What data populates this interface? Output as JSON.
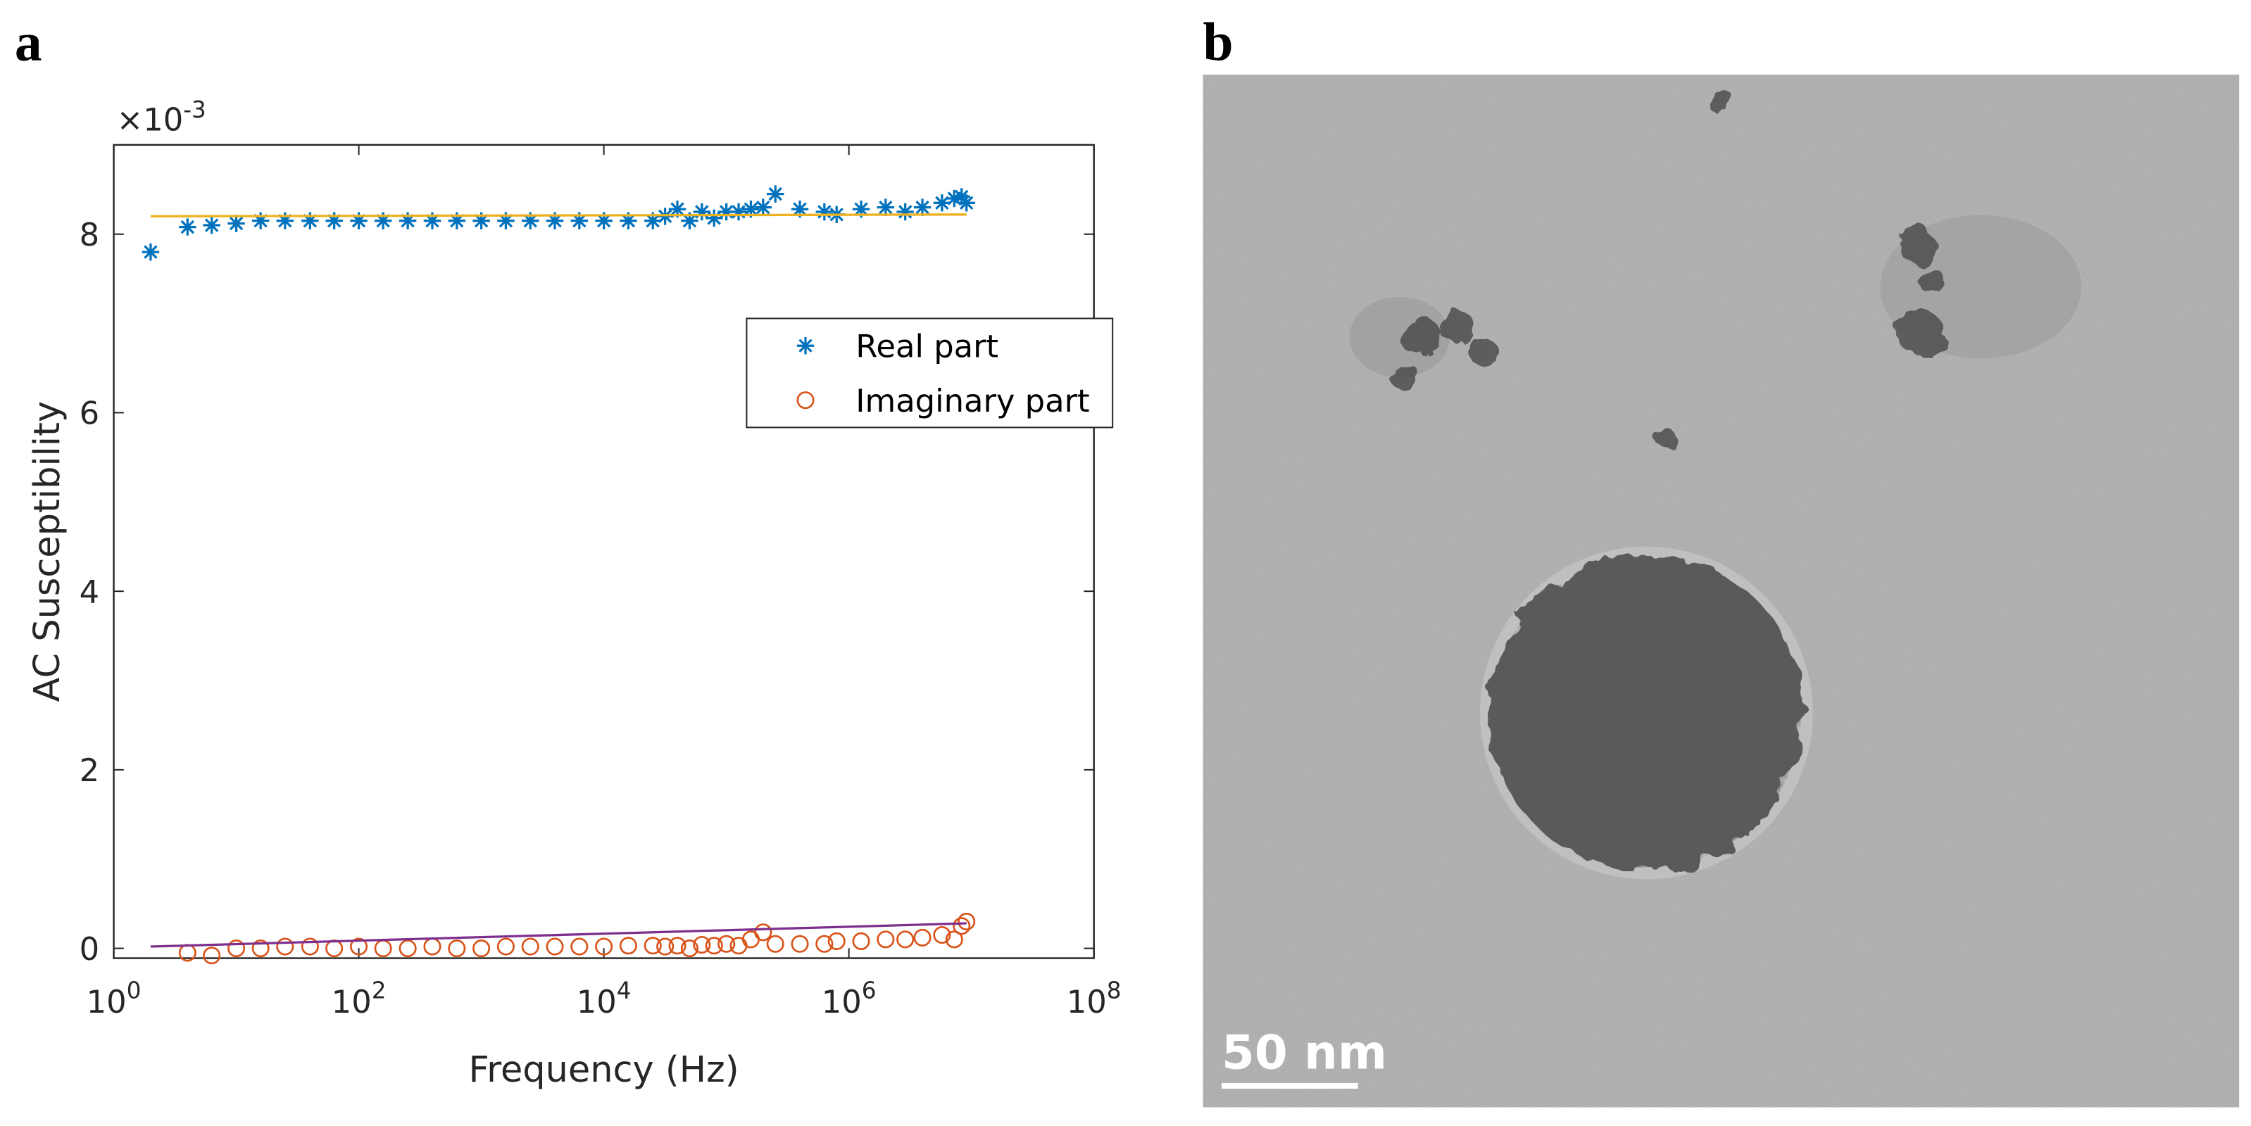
{
  "panels": [
    "a",
    "b"
  ],
  "chart_data": {
    "type": "scatter",
    "xlabel": "Frequency (Hz)",
    "ylabel": "AC Susceptibility",
    "y_multiplier": {
      "base": "×10",
      "exponent": "-3"
    },
    "xscale": "log",
    "xlim": [
      1,
      100000000
    ],
    "xticks": [
      {
        "value": 1,
        "label": "10^0"
      },
      {
        "value": 100,
        "label": "10^2"
      },
      {
        "value": 10000,
        "label": "10^4"
      },
      {
        "value": 1000000,
        "label": "10^6"
      },
      {
        "value": 100000000,
        "label": "10^8"
      }
    ],
    "ylim": [
      -0.11,
      9
    ],
    "yticks": [
      0,
      2,
      4,
      6,
      8
    ],
    "legend": "east",
    "x": [
      2,
      4,
      6.3,
      10,
      15.8,
      25,
      40,
      63,
      100,
      158,
      251,
      398,
      631,
      1000,
      1585,
      2512,
      3981,
      6310,
      10000,
      15850,
      25120,
      31620,
      39810,
      50120,
      63100,
      79430,
      100000,
      125900,
      158500,
      199500,
      251200,
      398100,
      630900,
      794300,
      1259000,
      1995000,
      2884000,
      3981000,
      5754000,
      7244000,
      8318000,
      9120000
    ],
    "series": [
      {
        "name": "Real part",
        "color": "#0072BD",
        "marker": "*",
        "values": [
          7.8,
          8.08,
          8.1,
          8.12,
          8.15,
          8.15,
          8.15,
          8.15,
          8.15,
          8.15,
          8.15,
          8.15,
          8.15,
          8.15,
          8.15,
          8.15,
          8.15,
          8.15,
          8.15,
          8.15,
          8.15,
          8.2,
          8.28,
          8.15,
          8.25,
          8.18,
          8.25,
          8.25,
          8.28,
          8.3,
          8.45,
          8.28,
          8.25,
          8.22,
          8.28,
          8.3,
          8.25,
          8.3,
          8.35,
          8.4,
          8.42,
          8.35
        ]
      },
      {
        "name": "Imaginary part",
        "color": "#D95319",
        "marker": "o",
        "values": [
          null,
          -0.05,
          -0.08,
          0.0,
          0.0,
          0.02,
          0.02,
          0.0,
          0.02,
          0.0,
          0.0,
          0.02,
          0.0,
          0.0,
          0.02,
          0.02,
          0.02,
          0.02,
          0.02,
          0.03,
          0.03,
          0.02,
          0.03,
          0.0,
          0.04,
          0.03,
          0.05,
          0.03,
          0.1,
          0.18,
          0.05,
          0.05,
          0.05,
          0.08,
          0.08,
          0.1,
          0.1,
          0.12,
          0.15,
          0.1,
          0.25,
          0.3
        ]
      },
      {
        "color": "#EDB120",
        "marker": "line",
        "x": [
          2,
          9120000
        ],
        "values": [
          8.2,
          8.22
        ]
      },
      {
        "color": "#7E2F8E",
        "marker": "line",
        "x": [
          2,
          9120000
        ],
        "values": [
          0.02,
          0.28
        ]
      }
    ]
  },
  "image": {
    "scale_bar": "50 nm"
  }
}
